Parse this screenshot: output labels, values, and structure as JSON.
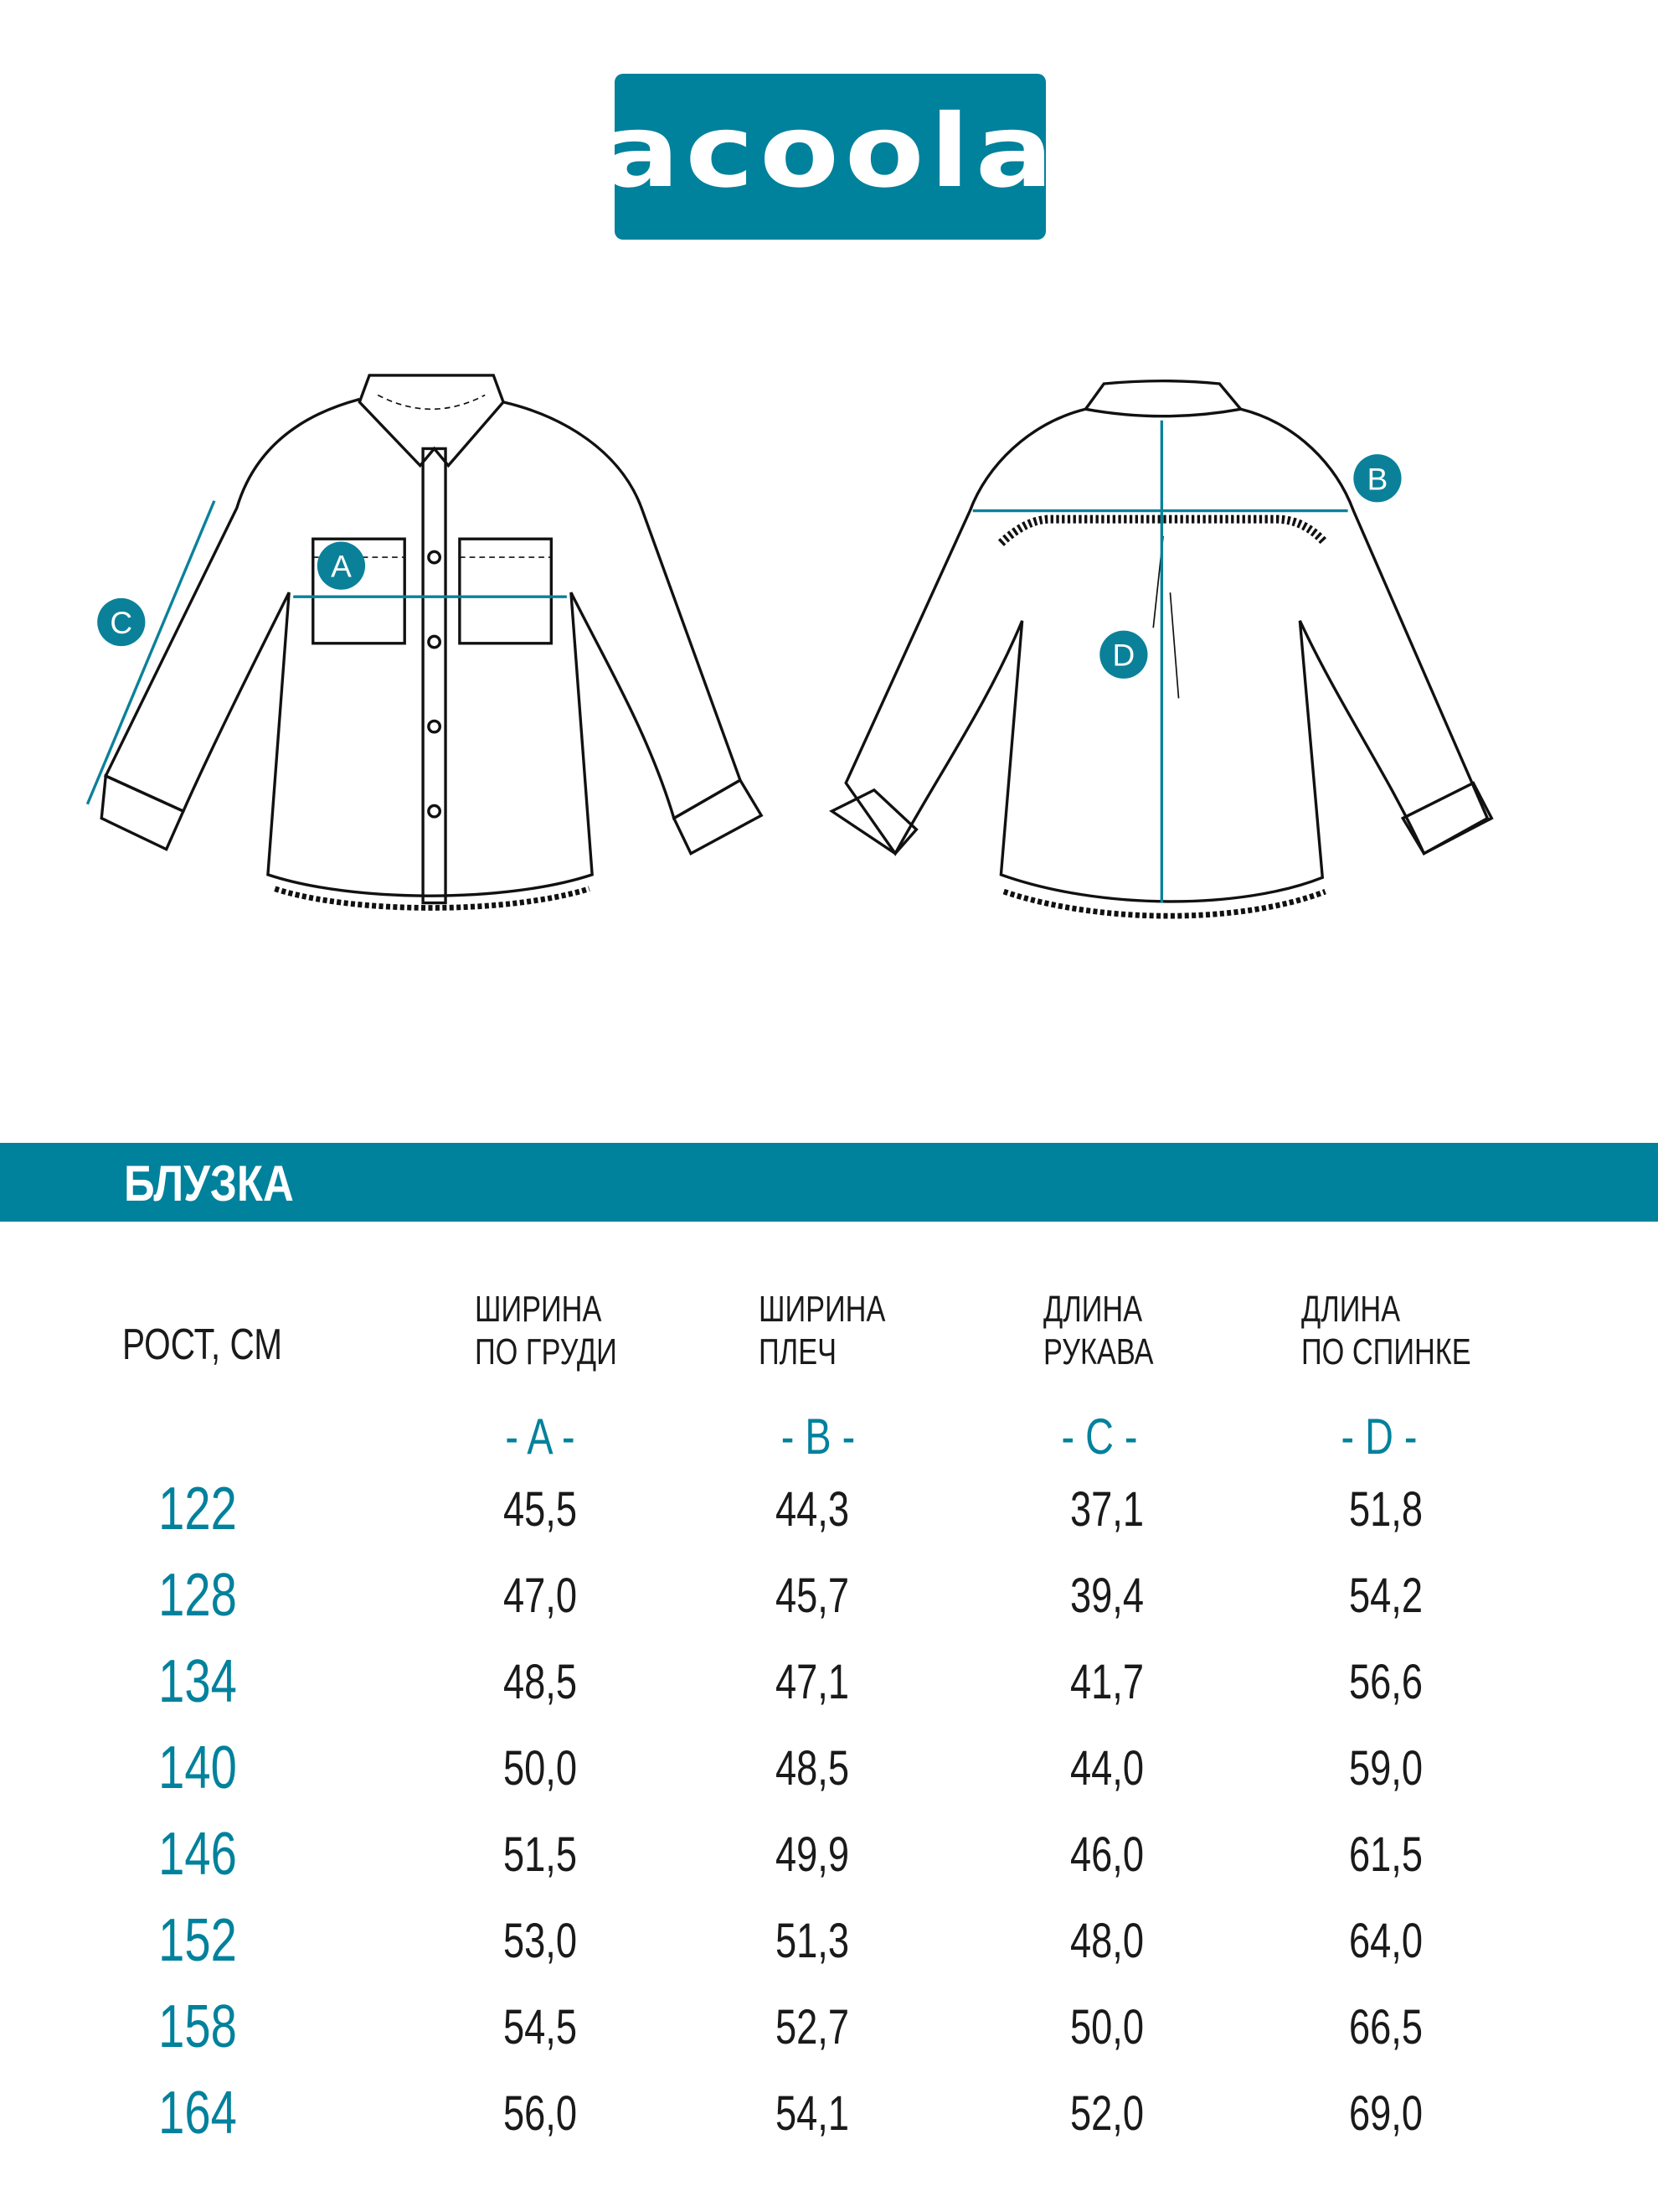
{
  "brand": {
    "logo_text": "acoola",
    "color": "#00819c"
  },
  "diagram": {
    "labels": {
      "a": "A",
      "b": "B",
      "c": "C",
      "d": "D"
    }
  },
  "product": {
    "title": "БЛУЗКА"
  },
  "table": {
    "height_header": "РОСТ, СМ",
    "columns": [
      {
        "line1": "ШИРИНА",
        "line2": "ПО ГРУДИ",
        "letter": "- A -"
      },
      {
        "line1": "ШИРИНА",
        "line2": "ПЛЕЧ",
        "letter": "- B -"
      },
      {
        "line1": "ДЛИНА",
        "line2": "РУКАВА",
        "letter": "- C -"
      },
      {
        "line1": "ДЛИНА",
        "line2": "ПО СПИНКЕ",
        "letter": "- D -"
      }
    ],
    "rows": [
      {
        "height": "122",
        "values": [
          "45,5",
          "44,3",
          "37,1",
          "51,8"
        ]
      },
      {
        "height": "128",
        "values": [
          "47,0",
          "45,7",
          "39,4",
          "54,2"
        ]
      },
      {
        "height": "134",
        "values": [
          "48,5",
          "47,1",
          "41,7",
          "56,6"
        ]
      },
      {
        "height": "140",
        "values": [
          "50,0",
          "48,5",
          "44,0",
          "59,0"
        ]
      },
      {
        "height": "146",
        "values": [
          "51,5",
          "49,9",
          "46,0",
          "61,5"
        ]
      },
      {
        "height": "152",
        "values": [
          "53,0",
          "51,3",
          "48,0",
          "64,0"
        ]
      },
      {
        "height": "158",
        "values": [
          "54,5",
          "52,7",
          "50,0",
          "66,5"
        ]
      },
      {
        "height": "164",
        "values": [
          "56,0",
          "54,1",
          "52,0",
          "69,0"
        ]
      }
    ]
  }
}
